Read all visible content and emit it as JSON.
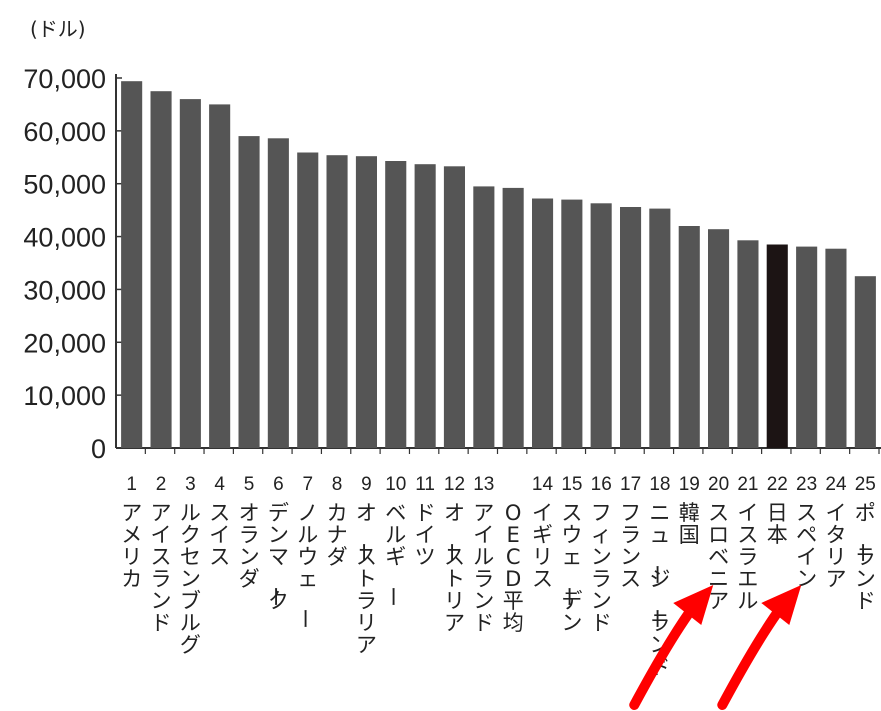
{
  "chart_data": {
    "type": "bar",
    "unit_label": "(ドル)",
    "ylim": [
      0,
      70000
    ],
    "yticks": [
      "0",
      "10,000",
      "20,000",
      "30,000",
      "40,000",
      "50,000",
      "60,000",
      "70,000"
    ],
    "ytick_values": [
      0,
      10000,
      20000,
      30000,
      40000,
      50000,
      60000,
      70000
    ],
    "grid": false,
    "legend": "none",
    "bar_color": "#555555",
    "highlight_color": "#1c1414",
    "arrow_color": "#ff0000",
    "categories": [
      {
        "rank": "1",
        "name": "アメリカ",
        "value": 69400
      },
      {
        "rank": "2",
        "name": "アイスランド",
        "value": 67500
      },
      {
        "rank": "3",
        "name": "ルクセンブルグ",
        "value": 66000
      },
      {
        "rank": "4",
        "name": "スイス",
        "value": 65000
      },
      {
        "rank": "5",
        "name": "オランダ",
        "value": 59000
      },
      {
        "rank": "6",
        "name": "デンマーク",
        "value": 58600
      },
      {
        "rank": "7",
        "name": "ノルウェー",
        "value": 55900
      },
      {
        "rank": "8",
        "name": "カナダ",
        "value": 55400
      },
      {
        "rank": "9",
        "name": "オーストラリア",
        "value": 55200
      },
      {
        "rank": "10",
        "name": "ベルギー",
        "value": 54300
      },
      {
        "rank": "11",
        "name": "ドイツ",
        "value": 53700
      },
      {
        "rank": "12",
        "name": "オーストリア",
        "value": 53300
      },
      {
        "rank": "13",
        "name": "アイルランド",
        "value": 49500
      },
      {
        "rank": "",
        "name": "OECD平均",
        "value": 49200
      },
      {
        "rank": "14",
        "name": "イギリス",
        "value": 47200
      },
      {
        "rank": "15",
        "name": "スウェーデン",
        "value": 47000
      },
      {
        "rank": "16",
        "name": "フィンランド",
        "value": 46300
      },
      {
        "rank": "17",
        "name": "フランス",
        "value": 45600
      },
      {
        "rank": "18",
        "name": "ニュージーランド",
        "value": 45300
      },
      {
        "rank": "19",
        "name": "韓国",
        "value": 42000
      },
      {
        "rank": "20",
        "name": "スロベニア",
        "value": 41400
      },
      {
        "rank": "21",
        "name": "イスラエル",
        "value": 39300
      },
      {
        "rank": "22",
        "name": "日本",
        "value": 38500,
        "highlight": true
      },
      {
        "rank": "23",
        "name": "スペイン",
        "value": 38100
      },
      {
        "rank": "24",
        "name": "イタリア",
        "value": 37700
      },
      {
        "rank": "25",
        "name": "ポーランド",
        "value": 32500
      }
    ],
    "arrows": [
      "韓国",
      "日本"
    ]
  }
}
